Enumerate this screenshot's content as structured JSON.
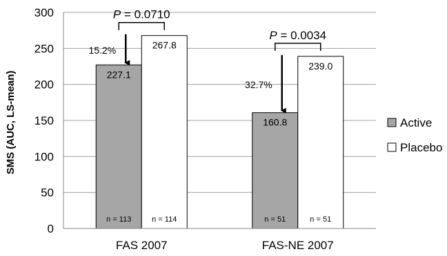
{
  "chart_data": {
    "type": "bar",
    "title": "",
    "xlabel": "",
    "ylabel": "SMS (AUC, LS-mean)",
    "ylim": [
      0,
      300
    ],
    "yticks": [
      0,
      50,
      100,
      150,
      200,
      250,
      300
    ],
    "grid": true,
    "legend_position": "right",
    "categories": [
      "FAS 2007",
      "FAS-NE 2007"
    ],
    "series": [
      {
        "name": "Active",
        "color": "#a6a6a6",
        "values": [
          227.1,
          160.8
        ],
        "value_labels": [
          "227.1",
          "160.8"
        ],
        "n_labels": [
          "n = 113",
          "n = 51"
        ]
      },
      {
        "name": "Placebo",
        "color": "#ffffff",
        "values": [
          267.8,
          239.0
        ],
        "value_labels": [
          "267.8",
          "239.0"
        ],
        "n_labels": [
          "n = 114",
          "n = 51"
        ]
      }
    ],
    "annotations": {
      "p_values": [
        {
          "p": "P",
          "text": " = 0.0710"
        },
        {
          "p": "P",
          "text": " = 0.0034"
        }
      ],
      "reductions": [
        "15.2%",
        "32.7%"
      ]
    }
  }
}
